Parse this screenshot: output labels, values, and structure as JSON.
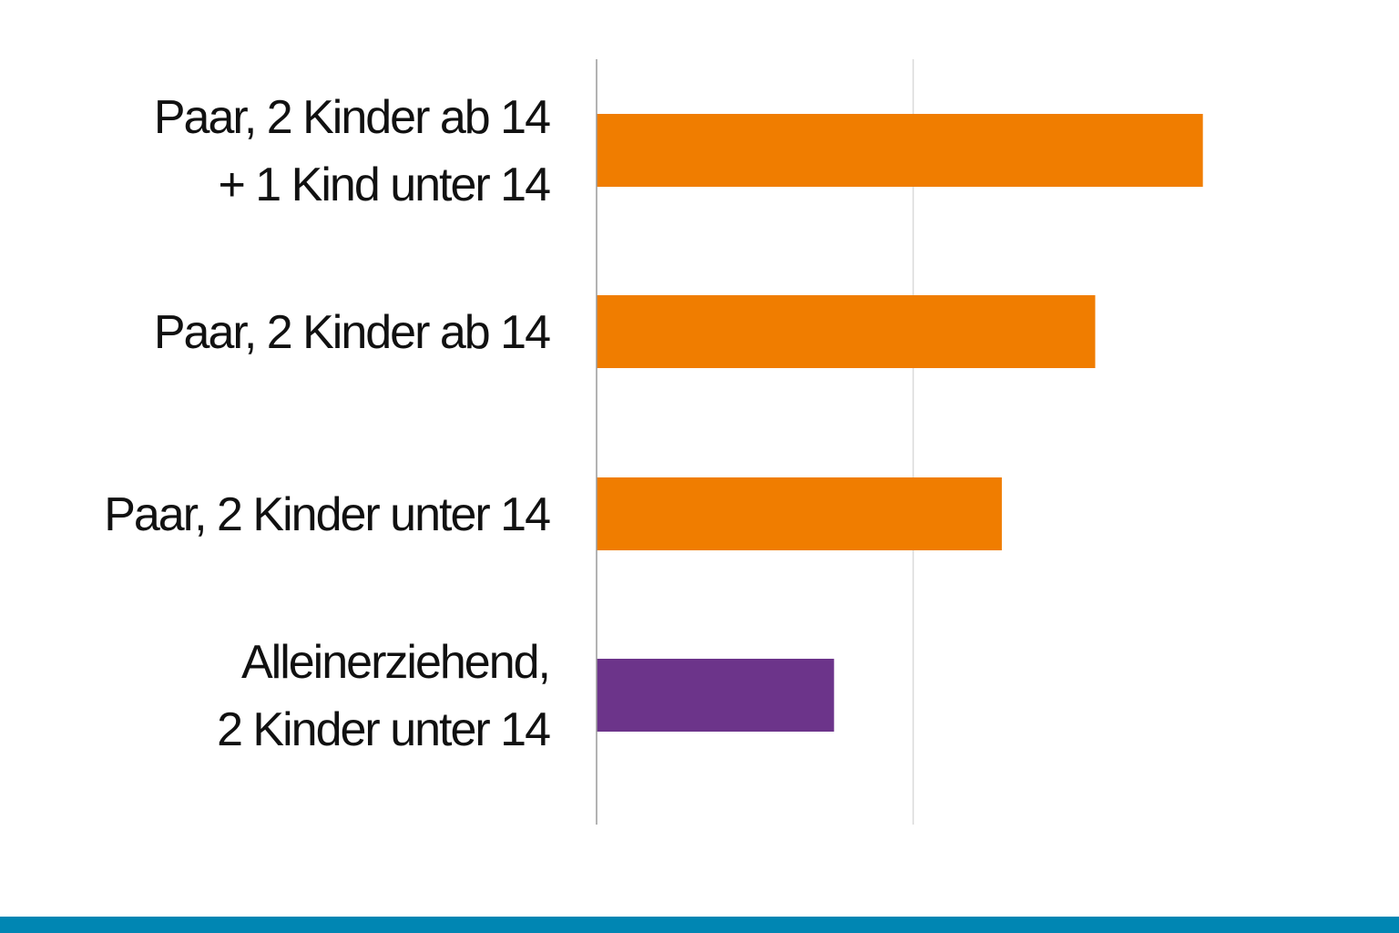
{
  "chart_data": {
    "type": "bar",
    "orientation": "horizontal",
    "categories": [
      [
        "Paar, 2 Kinder ab 14",
        "+ 1 Kind unter 14"
      ],
      [
        "Paar, 2 Kinder ab 14"
      ],
      [
        "Paar, 2 Kinder unter 14"
      ],
      [
        "Alleinerziehend,",
        "2 Kinder unter 14"
      ]
    ],
    "values": [
      1.915,
      1.575,
      1.28,
      0.75
    ],
    "bar_colors": [
      "#f07d00",
      "#f07d00",
      "#f07d00",
      "#6c348a"
    ],
    "title": "",
    "xlabel": "",
    "ylabel": "",
    "xlim": [
      0,
      2.5
    ],
    "gridlines": [
      1.0
    ],
    "grid": true,
    "legend": "none"
  },
  "colors": {
    "bottom_bar": "#0086b3",
    "axis_line": "#9a9a9a",
    "grid_line": "#d9d9d9",
    "label_text": "#111111"
  }
}
